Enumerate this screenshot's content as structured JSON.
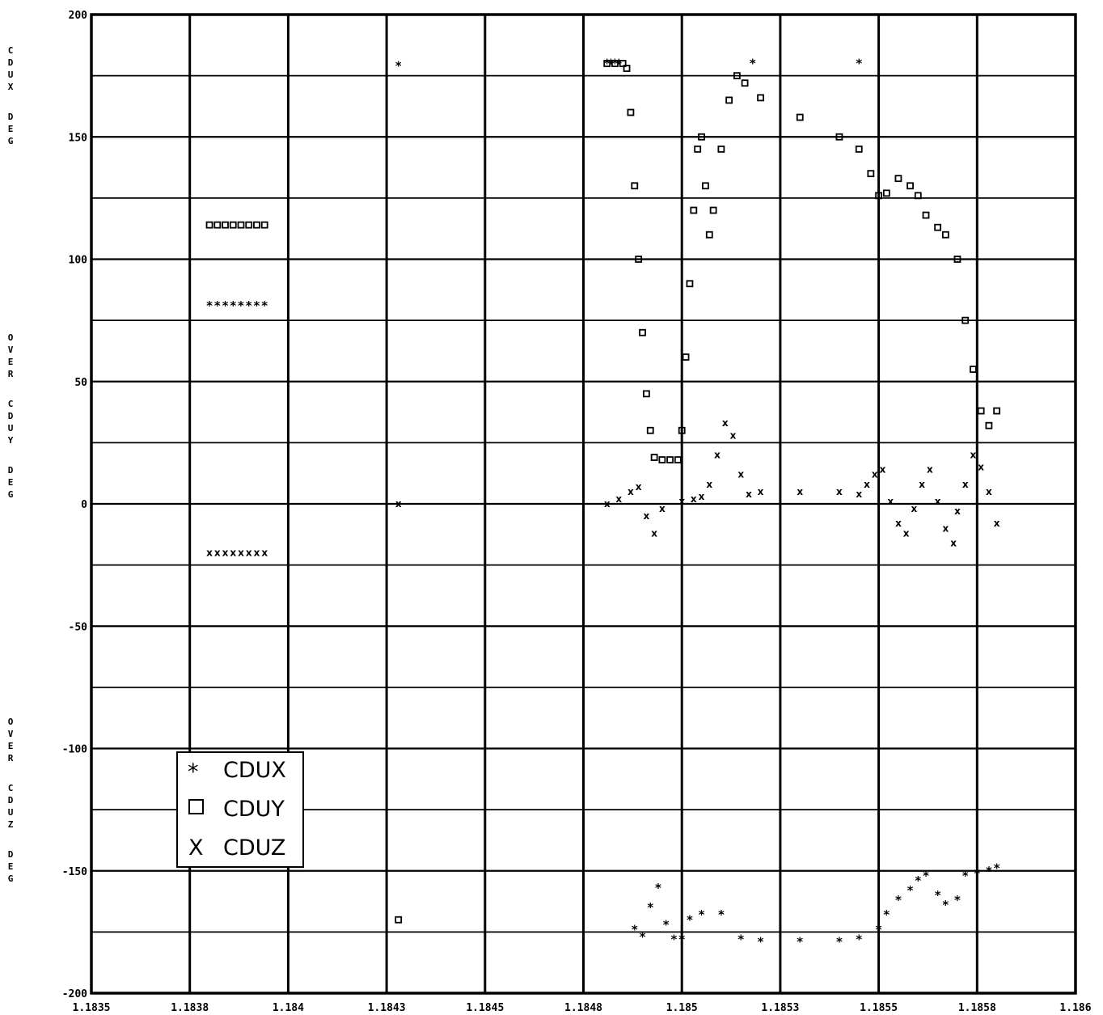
{
  "chart_data": {
    "type": "scatter",
    "title": "",
    "xlabel": "",
    "ylabel_lines": [
      "CDUX DEG",
      "OVER CDUY DEG",
      "OVER CDUZ DEG"
    ],
    "xlim": [
      1.1835,
      1.186
    ],
    "ylim": [
      -200,
      200
    ],
    "x_ticks": [
      "1.1835",
      "1.1838",
      "1.184",
      "1.1843",
      "1.1845",
      "1.1848",
      "1.185",
      "1.1853",
      "1.1855",
      "1.1858",
      "1.186"
    ],
    "y_ticks": [
      "200",
      "150",
      "100",
      "50",
      "0",
      "-50",
      "-100",
      "-150",
      "-200"
    ],
    "grid": true,
    "legend_position": "lower-left",
    "series": [
      {
        "name": "CDUX",
        "marker": "*",
        "points": [
          [
            1.1838,
            81
          ],
          [
            1.18382,
            81
          ],
          [
            1.18384,
            81
          ],
          [
            1.18386,
            81
          ],
          [
            1.18388,
            81
          ],
          [
            1.1839,
            81
          ],
          [
            1.18392,
            81
          ],
          [
            1.18394,
            81
          ],
          [
            1.18428,
            179
          ],
          [
            1.18481,
            180
          ],
          [
            1.18482,
            180
          ],
          [
            1.18483,
            180
          ],
          [
            1.18484,
            180
          ],
          [
            1.18488,
            -174
          ],
          [
            1.1849,
            -177
          ],
          [
            1.18492,
            -165
          ],
          [
            1.18494,
            -157
          ],
          [
            1.18496,
            -172
          ],
          [
            1.18498,
            -178
          ],
          [
            1.185,
            -178
          ],
          [
            1.18502,
            -170
          ],
          [
            1.18505,
            -168
          ],
          [
            1.1851,
            -168
          ],
          [
            1.18515,
            -178
          ],
          [
            1.1852,
            -179
          ],
          [
            1.1853,
            -179
          ],
          [
            1.1854,
            -179
          ],
          [
            1.18545,
            -178
          ],
          [
            1.18518,
            180
          ],
          [
            1.18545,
            180
          ],
          [
            1.1855,
            -174
          ],
          [
            1.18552,
            -168
          ],
          [
            1.18555,
            -162
          ],
          [
            1.18558,
            -158
          ],
          [
            1.1856,
            -154
          ],
          [
            1.18562,
            -152
          ],
          [
            1.18565,
            -160
          ],
          [
            1.18567,
            -164
          ],
          [
            1.1857,
            -162
          ],
          [
            1.18572,
            -152
          ],
          [
            1.18575,
            -151
          ],
          [
            1.18578,
            -150
          ],
          [
            1.1858,
            -149
          ]
        ]
      },
      {
        "name": "CDUY",
        "marker": "square",
        "points": [
          [
            1.1838,
            114
          ],
          [
            1.18382,
            114
          ],
          [
            1.18384,
            114
          ],
          [
            1.18386,
            114
          ],
          [
            1.18388,
            114
          ],
          [
            1.1839,
            114
          ],
          [
            1.18392,
            114
          ],
          [
            1.18394,
            114
          ],
          [
            1.18428,
            -170
          ],
          [
            1.18481,
            180
          ],
          [
            1.18483,
            180
          ],
          [
            1.18485,
            180
          ],
          [
            1.18486,
            178
          ],
          [
            1.18487,
            160
          ],
          [
            1.18488,
            130
          ],
          [
            1.18489,
            100
          ],
          [
            1.1849,
            70
          ],
          [
            1.18491,
            45
          ],
          [
            1.18492,
            30
          ],
          [
            1.18493,
            19
          ],
          [
            1.18495,
            18
          ],
          [
            1.18497,
            18
          ],
          [
            1.18499,
            18
          ],
          [
            1.185,
            30
          ],
          [
            1.18501,
            60
          ],
          [
            1.18502,
            90
          ],
          [
            1.18503,
            120
          ],
          [
            1.18504,
            145
          ],
          [
            1.18505,
            150
          ],
          [
            1.18506,
            130
          ],
          [
            1.18507,
            110
          ],
          [
            1.18508,
            120
          ],
          [
            1.1851,
            145
          ],
          [
            1.18512,
            165
          ],
          [
            1.18514,
            175
          ],
          [
            1.18516,
            172
          ],
          [
            1.1852,
            166
          ],
          [
            1.1853,
            158
          ],
          [
            1.1854,
            150
          ],
          [
            1.18545,
            145
          ],
          [
            1.18548,
            135
          ],
          [
            1.1855,
            126
          ],
          [
            1.18552,
            127
          ],
          [
            1.18555,
            133
          ],
          [
            1.18558,
            130
          ],
          [
            1.1856,
            126
          ],
          [
            1.18562,
            118
          ],
          [
            1.18565,
            113
          ],
          [
            1.18567,
            110
          ],
          [
            1.1857,
            100
          ],
          [
            1.18572,
            75
          ],
          [
            1.18574,
            55
          ],
          [
            1.18576,
            38
          ],
          [
            1.18578,
            32
          ],
          [
            1.1858,
            38
          ]
        ]
      },
      {
        "name": "CDUZ",
        "marker": "x",
        "points": [
          [
            1.1838,
            -20
          ],
          [
            1.18382,
            -20
          ],
          [
            1.18384,
            -20
          ],
          [
            1.18386,
            -20
          ],
          [
            1.18388,
            -20
          ],
          [
            1.1839,
            -20
          ],
          [
            1.18392,
            -20
          ],
          [
            1.18394,
            -20
          ],
          [
            1.18428,
            0
          ],
          [
            1.18481,
            0
          ],
          [
            1.18484,
            2
          ],
          [
            1.18487,
            5
          ],
          [
            1.18489,
            7
          ],
          [
            1.18491,
            -5
          ],
          [
            1.18493,
            -12
          ],
          [
            1.18495,
            -2
          ],
          [
            1.185,
            1
          ],
          [
            1.18503,
            2
          ],
          [
            1.18505,
            3
          ],
          [
            1.18507,
            8
          ],
          [
            1.18509,
            20
          ],
          [
            1.18511,
            33
          ],
          [
            1.18513,
            28
          ],
          [
            1.18515,
            12
          ],
          [
            1.18517,
            4
          ],
          [
            1.1852,
            5
          ],
          [
            1.1853,
            5
          ],
          [
            1.1854,
            5
          ],
          [
            1.18545,
            4
          ],
          [
            1.18547,
            8
          ],
          [
            1.18549,
            12
          ],
          [
            1.18551,
            14
          ],
          [
            1.18553,
            1
          ],
          [
            1.18555,
            -8
          ],
          [
            1.18557,
            -12
          ],
          [
            1.18559,
            -2
          ],
          [
            1.18561,
            8
          ],
          [
            1.18563,
            14
          ],
          [
            1.18565,
            1
          ],
          [
            1.18567,
            -10
          ],
          [
            1.18569,
            -16
          ],
          [
            1.1857,
            -3
          ],
          [
            1.18572,
            8
          ],
          [
            1.18574,
            20
          ],
          [
            1.18576,
            15
          ],
          [
            1.18578,
            5
          ],
          [
            1.1858,
            -8
          ]
        ]
      }
    ]
  }
}
